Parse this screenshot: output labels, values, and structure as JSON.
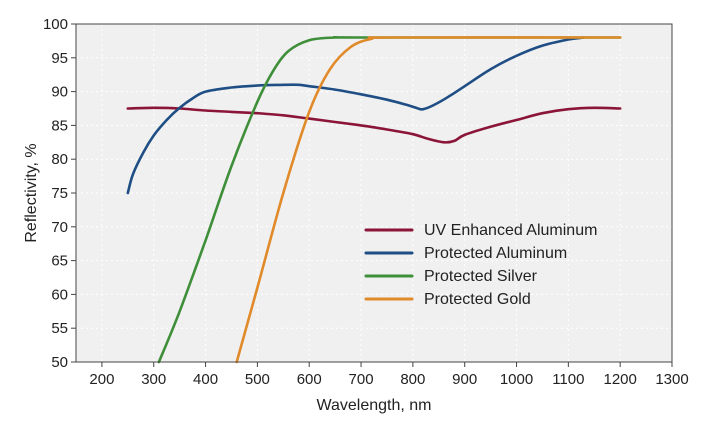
{
  "chart_data": {
    "type": "line",
    "title": "",
    "xlabel": "Wavelength, nm",
    "ylabel": "Reflectivity, %",
    "xlim": [
      150,
      1300
    ],
    "ylim": [
      50,
      100
    ],
    "xticks": [
      200,
      300,
      400,
      500,
      600,
      700,
      800,
      900,
      1000,
      1100,
      1200,
      1300
    ],
    "yticks": [
      50,
      55,
      60,
      65,
      70,
      75,
      80,
      85,
      90,
      95,
      100
    ],
    "grid": true,
    "legend_position": "center-right",
    "plot_background": "#f0f0f0",
    "series": [
      {
        "name": "UV Enhanced Aluminum",
        "color": "#8b1538",
        "points": [
          [
            250,
            87.5
          ],
          [
            300,
            87.6
          ],
          [
            350,
            87.5
          ],
          [
            400,
            87.2
          ],
          [
            450,
            87.0
          ],
          [
            500,
            86.8
          ],
          [
            550,
            86.5
          ],
          [
            600,
            86.0
          ],
          [
            650,
            85.5
          ],
          [
            700,
            85.0
          ],
          [
            750,
            84.4
          ],
          [
            800,
            83.7
          ],
          [
            830,
            83.0
          ],
          [
            860,
            82.5
          ],
          [
            880,
            82.7
          ],
          [
            900,
            83.6
          ],
          [
            950,
            84.8
          ],
          [
            1000,
            85.8
          ],
          [
            1050,
            86.8
          ],
          [
            1100,
            87.4
          ],
          [
            1150,
            87.6
          ],
          [
            1200,
            87.5
          ]
        ]
      },
      {
        "name": "Protected Aluminum",
        "color": "#1f4e85",
        "points": [
          [
            250,
            75.0
          ],
          [
            260,
            77.8
          ],
          [
            280,
            81.0
          ],
          [
            300,
            83.5
          ],
          [
            325,
            85.8
          ],
          [
            350,
            87.6
          ],
          [
            375,
            89.0
          ],
          [
            400,
            90.0
          ],
          [
            450,
            90.6
          ],
          [
            500,
            90.9
          ],
          [
            550,
            91.0
          ],
          [
            580,
            91.0
          ],
          [
            600,
            90.8
          ],
          [
            650,
            90.3
          ],
          [
            700,
            89.6
          ],
          [
            750,
            88.8
          ],
          [
            790,
            88.0
          ],
          [
            810,
            87.5
          ],
          [
            820,
            87.4
          ],
          [
            840,
            88.0
          ],
          [
            870,
            89.3
          ],
          [
            900,
            90.8
          ],
          [
            950,
            93.3
          ],
          [
            1000,
            95.3
          ],
          [
            1050,
            96.8
          ],
          [
            1100,
            97.7
          ],
          [
            1130,
            98.0
          ]
        ]
      },
      {
        "name": "Protected Silver",
        "color": "#3f8f3a",
        "points": [
          [
            310,
            50.0
          ],
          [
            350,
            57.5
          ],
          [
            400,
            68.0
          ],
          [
            450,
            79.0
          ],
          [
            500,
            88.5
          ],
          [
            530,
            93.0
          ],
          [
            560,
            96.0
          ],
          [
            600,
            97.6
          ],
          [
            650,
            98.0
          ],
          [
            700,
            98.0
          ],
          [
            1200,
            98.0
          ]
        ]
      },
      {
        "name": "Protected Gold",
        "color": "#e08a2a",
        "points": [
          [
            460,
            50.0
          ],
          [
            500,
            61.0
          ],
          [
            550,
            75.0
          ],
          [
            600,
            87.0
          ],
          [
            640,
            93.3
          ],
          [
            680,
            96.6
          ],
          [
            720,
            97.8
          ],
          [
            760,
            98.0
          ],
          [
            1200,
            98.0
          ]
        ]
      }
    ]
  }
}
